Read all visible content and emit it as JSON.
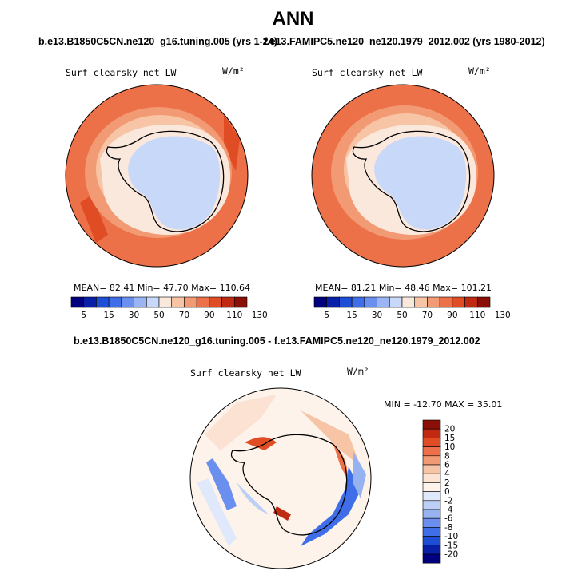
{
  "title": "ANN",
  "top_left_case": "b.e13.B1850C5CN.ne120_g16.tuning.005 (yrs 1-24)",
  "top_right_case": "f.e13.FAMIPC5.ne120_ne120.1979_2012.002 (yrs 1980-2012)",
  "diff_case": "b.e13.B1850C5CN.ne120_g16.tuning.005 - f.e13.FAMIPC5.ne120_ne120.1979_2012.002",
  "panels": {
    "left": {
      "variable": "Surf clearsky net LW",
      "units": "W/m²",
      "stats": "MEAN=  82.41   Min=  47.70   Max= 110.64"
    },
    "right": {
      "variable": "Surf clearsky net LW",
      "units": "W/m²",
      "stats": "MEAN=  81.21   Min=  48.46   Max= 101.21"
    },
    "diff": {
      "variable": "Surf clearsky net LW",
      "units": "W/m²",
      "stats": "MIN = -12.70  MAX =  35.01"
    }
  },
  "colorbar_main": {
    "labels": [
      "5",
      "15",
      "30",
      "50",
      "70",
      "90",
      "110",
      "130"
    ],
    "colors": [
      "#00007f",
      "#0a1fa8",
      "#1e4ed6",
      "#3f6ee8",
      "#6a8fef",
      "#9bb4f3",
      "#c8d8f8",
      "#fbe8dc",
      "#f8c4a6",
      "#f29a74",
      "#ec7148",
      "#e04c24",
      "#c02a12",
      "#8a0f06"
    ]
  },
  "colorbar_diff": {
    "labels": [
      "20",
      "15",
      "10",
      "8",
      "6",
      "4",
      "2",
      "0",
      "-2",
      "-4",
      "-6",
      "-8",
      "-10",
      "-15",
      "-20"
    ],
    "colors": [
      "#8a0f06",
      "#c02a12",
      "#e04c24",
      "#ec7148",
      "#f29a74",
      "#f8c4a6",
      "#fbe2d2",
      "#fdf3ea",
      "#dfe9fb",
      "#bccff6",
      "#97b2f0",
      "#6a8fef",
      "#3f6ee8",
      "#1e4ed6",
      "#0a1fa8",
      "#00007f"
    ]
  }
}
